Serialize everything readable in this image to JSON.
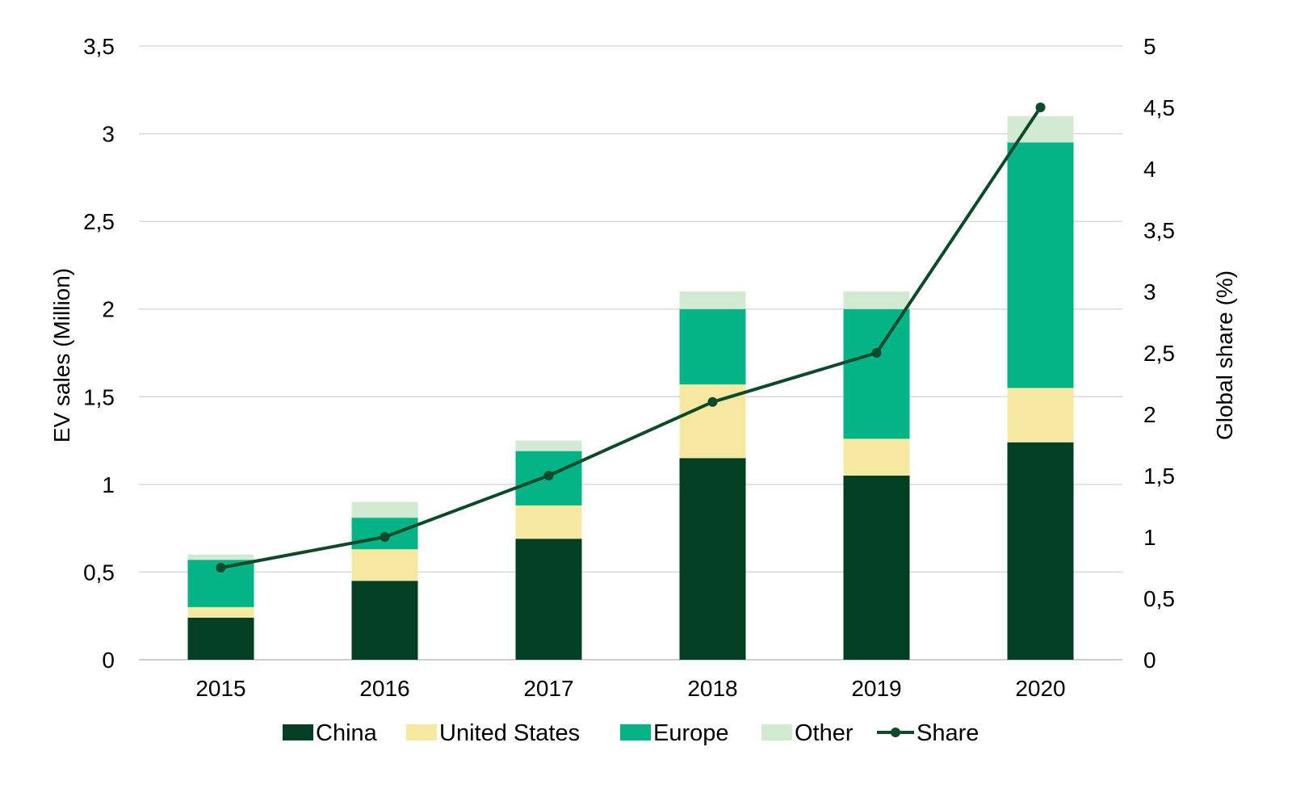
{
  "chart_data": {
    "type": "bar",
    "stacked": true,
    "categories": [
      "2015",
      "2016",
      "2017",
      "2018",
      "2019",
      "2020"
    ],
    "series": [
      {
        "name": "China",
        "color": "#043f24",
        "values": [
          0.24,
          0.45,
          0.69,
          1.15,
          1.05,
          1.24
        ]
      },
      {
        "name": "United States",
        "color": "#f6e8a0",
        "values": [
          0.06,
          0.18,
          0.19,
          0.42,
          0.21,
          0.31
        ]
      },
      {
        "name": "Europe",
        "color": "#04b487",
        "values": [
          0.27,
          0.18,
          0.31,
          0.43,
          0.74,
          1.4
        ]
      },
      {
        "name": "Other",
        "color": "#d2ead1",
        "values": [
          0.03,
          0.09,
          0.06,
          0.1,
          0.1,
          0.15
        ]
      }
    ],
    "line_series": {
      "name": "Share",
      "color": "#0c4a2a",
      "axis": "right",
      "values": [
        0.75,
        1.0,
        1.5,
        2.1,
        2.5,
        4.5
      ]
    },
    "ylabel": "EV sales (Million)",
    "ylim": [
      0,
      3.5
    ],
    "yticks": [
      "0",
      "0,5",
      "1",
      "1,5",
      "2",
      "2,5",
      "3",
      "3,5"
    ],
    "ylabel_right": "Global share (%)",
    "ylim_right": [
      0,
      5
    ],
    "yticks_right": [
      "0",
      "0,5",
      "1",
      "1,5",
      "2",
      "2,5",
      "3",
      "3,5",
      "4",
      "4,5",
      "5"
    ],
    "grid": true,
    "legend": "bottom"
  }
}
